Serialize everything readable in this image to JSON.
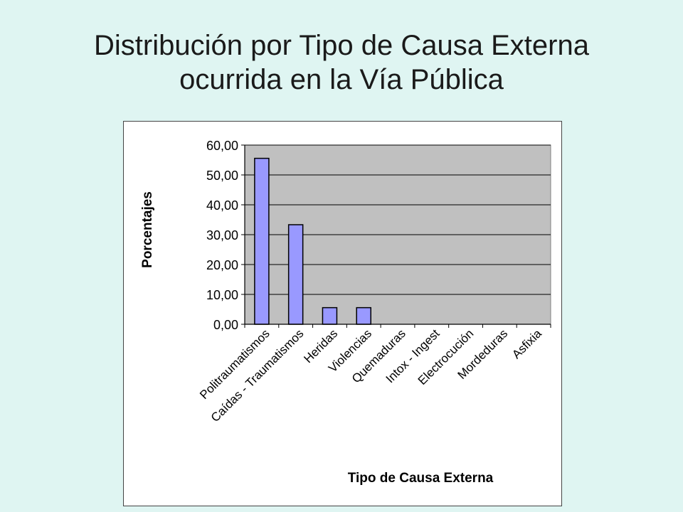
{
  "slide": {
    "title_line1": "Distribución por Tipo de Causa Externa",
    "title_line2": "ocurrida en la Vía Pública"
  },
  "chart_data": {
    "type": "bar",
    "title": "",
    "xlabel": "Tipo de Causa Externa",
    "ylabel": "Porcentajes",
    "categories": [
      "Politraumatismos",
      "Caídas - Traumatismos",
      "Heridas",
      "Violencias",
      "Quemaduras",
      "Intox - Ingest",
      "Electrocución",
      "Mordeduras",
      "Asfixia"
    ],
    "values": [
      55.56,
      33.33,
      5.56,
      5.56,
      0,
      0,
      0,
      0,
      0
    ],
    "ylim": [
      0,
      60
    ],
    "yticks": [
      "0,00",
      "10,00",
      "20,00",
      "30,00",
      "40,00",
      "50,00",
      "60,00"
    ],
    "grid": true,
    "legend": "none",
    "colors": {
      "bar_fill": "#9999ff",
      "bar_stroke": "#000000",
      "plot_background": "#c0c0c0",
      "gridline": "#000000"
    }
  }
}
